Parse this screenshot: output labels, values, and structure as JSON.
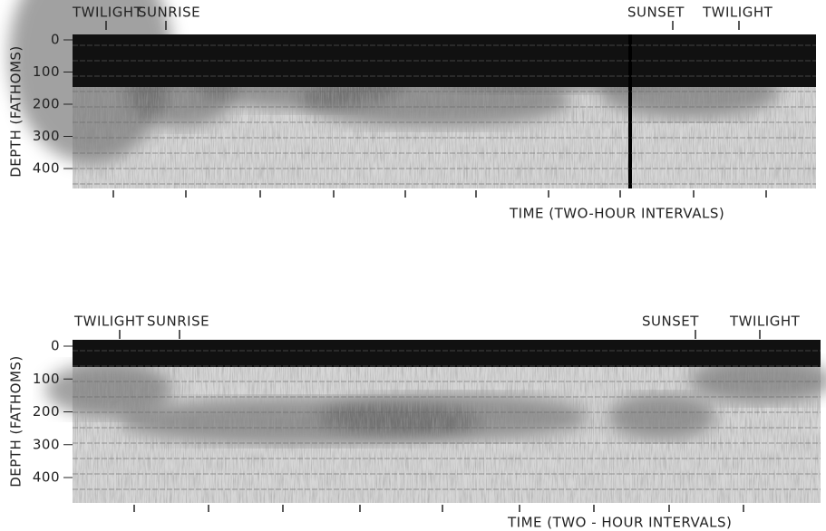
{
  "panels": [
    {
      "annotations": [
        "TWILIGHT",
        "SUNRISE",
        "SUNSET",
        "TWILIGHT"
      ],
      "y_label": "DEPTH (FATHOMS)",
      "yticks": [
        0,
        100,
        200,
        300,
        400
      ],
      "x_label": "TIME (TWO-HOUR INTERVALS)"
    },
    {
      "annotations": [
        "TWILIGHT",
        "SUNRISE",
        "SUNSET",
        "TWILIGHT"
      ],
      "y_label": "DEPTH (FATHOMS)",
      "yticks": [
        0,
        100,
        200,
        300,
        400
      ],
      "x_label": "TIME (TWO - HOUR INTERVALS)"
    }
  ]
}
